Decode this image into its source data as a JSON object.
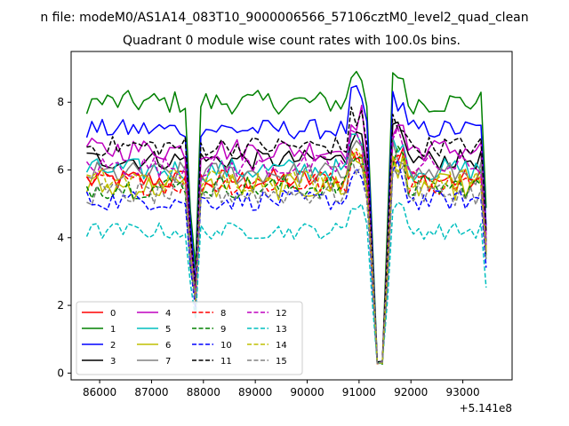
{
  "figure": {
    "suptitle": "n file: modeM0/AS1A14_083T10_9000006566_57106cztM0_level2_quad_clean",
    "title": "Quadrant 0 module wise count rates with 100.0s bins.",
    "x_offset_label": "+5.141e8"
  },
  "chart_data": {
    "type": "line",
    "title": "Quadrant 0 module wise count rates with 100.0s bins.",
    "xlabel": "",
    "ylabel": "",
    "x_offset": 514100000,
    "xlim": [
      85450,
      93950
    ],
    "ylim": [
      -0.2,
      9.5
    ],
    "xticks": [
      86000,
      87000,
      88000,
      89000,
      90000,
      91000,
      92000,
      93000
    ],
    "yticks": [
      0,
      2,
      4,
      6,
      8
    ],
    "grid": false,
    "legend_position": "lower-left",
    "legend_columns": 4,
    "profile_x": [
      85750,
      85850,
      85950,
      86050,
      86150,
      86250,
      86350,
      86450,
      86550,
      86650,
      86750,
      86850,
      86950,
      87050,
      87150,
      87250,
      87350,
      87450,
      87550,
      87650,
      87750,
      87850,
      87950,
      88050,
      88150,
      88250,
      88350,
      88450,
      88550,
      88650,
      88750,
      88850,
      88950,
      89050,
      89150,
      89250,
      89350,
      89450,
      89550,
      89650,
      89750,
      89850,
      89950,
      90050,
      90150,
      90250,
      90350,
      90450,
      90550,
      90650,
      90750,
      90850,
      90950,
      91050,
      91150,
      91250,
      91350,
      91450,
      91550,
      91650,
      91750,
      91850,
      91950,
      92050,
      92150,
      92250,
      92350,
      92450,
      92550,
      92650,
      92750,
      92850,
      92950,
      93050,
      93150,
      93250,
      93350,
      93450
    ],
    "profile_shape": [
      1,
      1,
      1,
      1,
      1,
      1,
      1,
      1,
      1,
      1,
      1,
      1,
      1,
      1,
      1,
      1,
      1,
      1,
      1,
      1,
      0.6,
      0.38,
      1,
      1,
      1,
      1,
      1,
      1,
      1,
      1,
      1,
      1,
      1,
      1,
      1,
      1,
      1,
      1,
      1,
      1,
      1,
      1,
      1,
      1,
      1,
      1,
      1,
      1,
      1,
      1,
      1,
      1,
      1,
      1,
      1,
      0.55,
      0.05,
      0.05,
      0.55,
      1,
      1,
      1,
      1,
      1,
      1,
      1,
      1,
      1,
      1,
      1,
      1,
      1,
      1,
      1,
      1,
      1,
      1,
      0.62
    ],
    "series_description": "Each module series is a noisy count-rate curve (counts/s) following the common profile: flat level with dips near 87700-87850 and 91350-91550, plus a rise near 90850-91050 and 91650-91850.",
    "series": [
      {
        "name": "0",
        "color": "#ff0000",
        "style": "solid",
        "base": 5.7,
        "noise": 0.35
      },
      {
        "name": "1",
        "color": "#008000",
        "style": "solid",
        "base": 8.0,
        "noise": 0.35
      },
      {
        "name": "2",
        "color": "#0000ff",
        "style": "solid",
        "base": 7.2,
        "noise": 0.3
      },
      {
        "name": "3",
        "color": "#000000",
        "style": "solid",
        "base": 6.3,
        "noise": 0.3
      },
      {
        "name": "4",
        "color": "#bf00bf",
        "style": "solid",
        "base": 6.6,
        "noise": 0.35
      },
      {
        "name": "5",
        "color": "#00bfbf",
        "style": "solid",
        "base": 6.0,
        "noise": 0.35
      },
      {
        "name": "6",
        "color": "#bfbf00",
        "style": "solid",
        "base": 5.5,
        "noise": 0.4
      },
      {
        "name": "7",
        "color": "#808080",
        "style": "solid",
        "base": 5.9,
        "noise": 0.35
      },
      {
        "name": "8",
        "color": "#ff0000",
        "style": "dashed",
        "base": 5.6,
        "noise": 0.35
      },
      {
        "name": "9",
        "color": "#008000",
        "style": "dashed",
        "base": 5.5,
        "noise": 0.35
      },
      {
        "name": "10",
        "color": "#0000ff",
        "style": "dashed",
        "base": 5.1,
        "noise": 0.3
      },
      {
        "name": "11",
        "color": "#000000",
        "style": "dashed",
        "base": 6.7,
        "noise": 0.3
      },
      {
        "name": "12",
        "color": "#bf00bf",
        "style": "dashed",
        "base": 6.1,
        "noise": 0.35
      },
      {
        "name": "13",
        "color": "#00bfbf",
        "style": "dashed",
        "base": 4.2,
        "noise": 0.25
      },
      {
        "name": "14",
        "color": "#bfbf00",
        "style": "dashed",
        "base": 5.7,
        "noise": 0.35
      },
      {
        "name": "15",
        "color": "#808080",
        "style": "dashed",
        "base": 5.3,
        "noise": 0.35
      }
    ]
  }
}
